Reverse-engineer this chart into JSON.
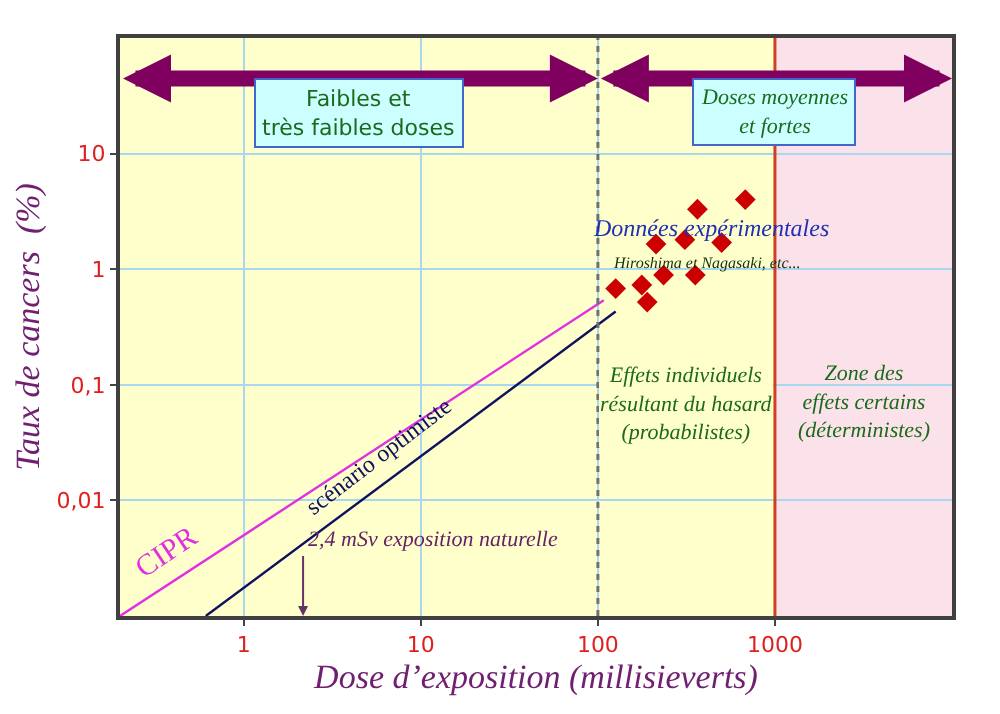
{
  "chart_data": {
    "type": "line",
    "xlabel": "Dose d’exposition (millisieverts)",
    "ylabel": "Taux de cancers  (%)",
    "log": "xy",
    "xlim": [
      0.2,
      10000
    ],
    "ylim": [
      0.001,
      100
    ],
    "xticks": [
      1,
      10,
      100,
      1000
    ],
    "yticks": [
      {
        "value": 0.01,
        "label": "0,01"
      },
      {
        "value": 0.1,
        "label": "0,1"
      },
      1,
      10
    ],
    "grid": true,
    "legend": false,
    "series": [
      {
        "name": "CIPR",
        "color": "#e030e0",
        "x": [
          0.2,
          108
        ],
        "values": [
          0.001,
          0.54
        ]
      },
      {
        "name": "scénario optimiste",
        "color": "#101060",
        "x": [
          0.61,
          126
        ],
        "values": [
          0.001,
          0.43
        ]
      },
      {
        "name": "Données expérimentales",
        "type": "scatter",
        "marker": "diamond",
        "color": "#cc0000",
        "x": [
          365,
          680,
          213,
          310,
          500,
          177,
          235,
          355,
          126,
          190
        ],
        "values": [
          3.3,
          4.0,
          1.65,
          1.8,
          1.7,
          0.73,
          0.89,
          0.89,
          0.68,
          0.52
        ]
      }
    ],
    "ref_lines": [
      {
        "axis": "x",
        "value": 100,
        "color": "#707070",
        "line_style": "dotted"
      },
      {
        "axis": "x",
        "value": 1000,
        "color": "#d04020",
        "line_style": "solid"
      }
    ],
    "bands": [
      {
        "axis": "x",
        "from": 0.2,
        "to": 1000,
        "color": "#ffffcc"
      },
      {
        "axis": "x",
        "from": 1000,
        "to": 10000,
        "color": "#fbe2ea",
        "label": "Zone des\neffets certains\n(déterministes)"
      }
    ],
    "annotations": [
      "Faibles et\ntrès faibles doses",
      "Doses moyennes\net fortes",
      {
        "text": "2,4 mSv exposition naturelle",
        "x": 2.4,
        "y": 0.001
      },
      "Hiroshima et Nagasaki, etc...",
      "Effets individuels\nrésultant du hasard\n(probabilistes)"
    ]
  }
}
